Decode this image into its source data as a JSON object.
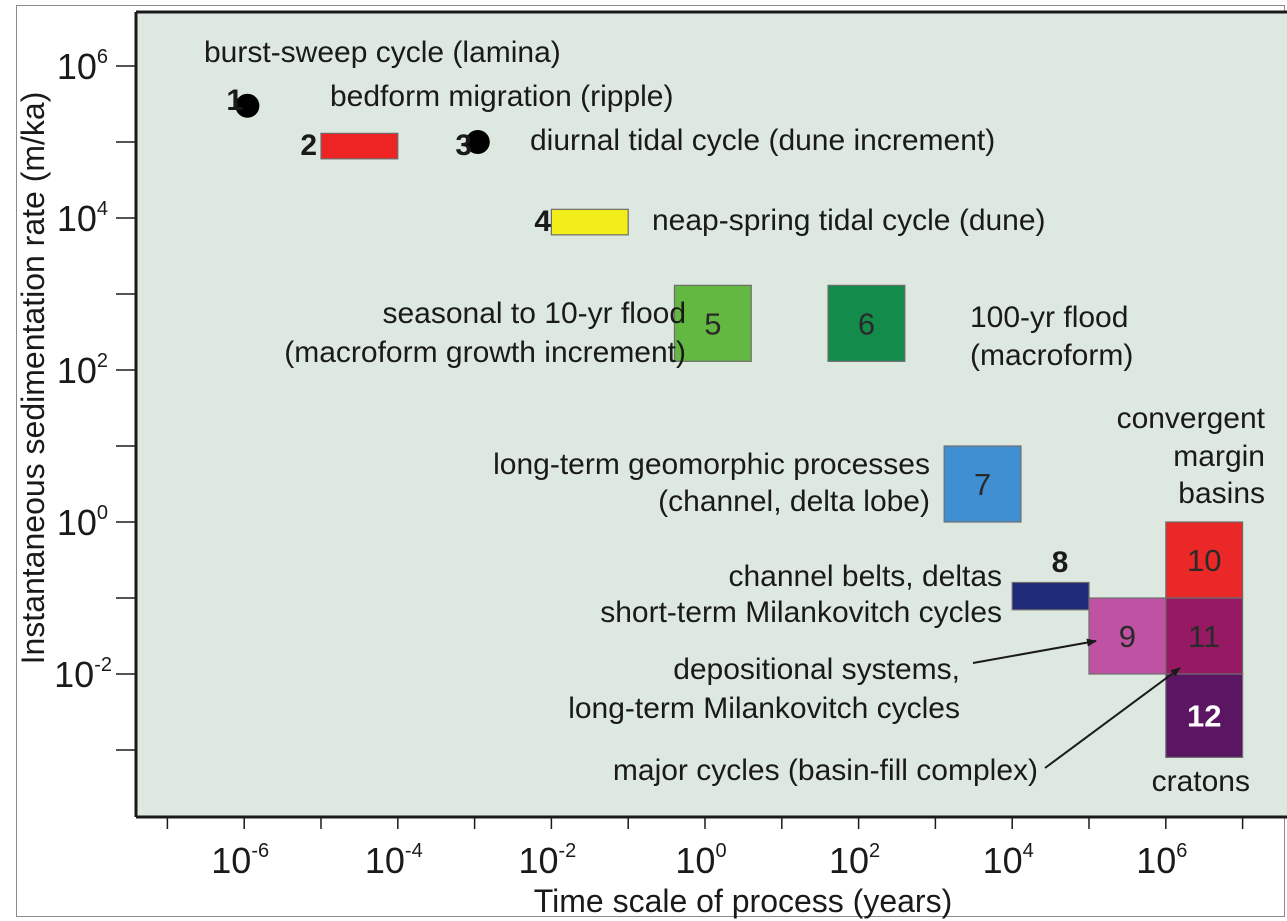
{
  "chart_data": {
    "type": "box-scatter",
    "title": "",
    "xlabel": "Time scale of process (years)",
    "ylabel": "Instantaneous sedimentation rate (m/ka)",
    "x_scale": "log",
    "y_scale": "log",
    "xlim": [
      1e-07,
      10000000.0
    ],
    "ylim": [
      0.0001,
      10000000.0
    ],
    "grid": false,
    "x_ticks": [
      {
        "value": 1e-06,
        "base": "10",
        "exp": "-6"
      },
      {
        "value": 0.0001,
        "base": "10",
        "exp": "-4"
      },
      {
        "value": 0.01,
        "base": "10",
        "exp": "-2"
      },
      {
        "value": 1,
        "base": "10",
        "exp": "0"
      },
      {
        "value": 100.0,
        "base": "10",
        "exp": "2"
      },
      {
        "value": 10000.0,
        "base": "10",
        "exp": "4"
      },
      {
        "value": 1000000.0,
        "base": "10",
        "exp": "6"
      }
    ],
    "y_ticks": [
      {
        "value": 1000000.0,
        "base": "10",
        "exp": "6"
      },
      {
        "value": 10000.0,
        "base": "10",
        "exp": "4"
      },
      {
        "value": 100.0,
        "base": "10",
        "exp": "2"
      },
      {
        "value": 1,
        "base": "10",
        "exp": "0"
      },
      {
        "value": 0.01,
        "base": "10",
        "exp": "-2"
      }
    ],
    "points": [
      {
        "id": "1",
        "x": 1.1e-06,
        "y": 300000.0,
        "color": "#000000"
      },
      {
        "id": "3",
        "x": 0.0011,
        "y": 100000.0,
        "color": "#000000"
      }
    ],
    "boxes": [
      {
        "id": "2",
        "x": [
          1e-05,
          0.0001
        ],
        "y": [
          60000.0,
          130000.0
        ],
        "color": "#ee2424",
        "label_inside": false
      },
      {
        "id": "4",
        "x": [
          0.01,
          0.1
        ],
        "y": [
          6000.0,
          13000.0
        ],
        "color": "#f2ee1a",
        "label_inside": false
      },
      {
        "id": "5",
        "x": [
          0.4,
          4
        ],
        "y": [
          130.0,
          1300.0
        ],
        "color": "#62b840",
        "label_inside": true
      },
      {
        "id": "6",
        "x": [
          40,
          400
        ],
        "y": [
          130.0,
          1300.0
        ],
        "color": "#138b4b",
        "label_inside": true
      },
      {
        "id": "7",
        "x": [
          1300.0,
          13000.0
        ],
        "y": [
          1,
          10
        ],
        "color": "#3f8fd2",
        "label_inside": true
      },
      {
        "id": "8",
        "x": [
          10000.0,
          100000.0
        ],
        "y": [
          0.07,
          0.16
        ],
        "color": "#1f2a78",
        "label_inside": false
      },
      {
        "id": "9",
        "x": [
          100000.0,
          1000000.0
        ],
        "y": [
          0.01,
          0.1
        ],
        "color": "#c052a4",
        "label_inside": true
      },
      {
        "id": "10",
        "x": [
          1000000.0,
          10000000.0
        ],
        "y": [
          0.1,
          1
        ],
        "color": "#ea2828",
        "label_inside": true
      },
      {
        "id": "11",
        "x": [
          1000000.0,
          10000000.0
        ],
        "y": [
          0.01,
          0.1
        ],
        "color": "#951a63",
        "label_inside": true
      },
      {
        "id": "12",
        "x": [
          1000000.0,
          10000000.0
        ],
        "y": [
          0.0008,
          0.01
        ],
        "color": "#5a1563",
        "label_inside": true
      }
    ],
    "annotations": [
      "burst-sweep cycle (lamina)",
      "bedform migration (ripple)",
      "diurnal tidal cycle (dune increment)",
      "neap-spring tidal cycle (dune)",
      "seasonal to 10-yr flood",
      "(macroform growth increment)",
      "100-yr flood",
      "(macroform)",
      "long-term geomorphic processes",
      "(channel, delta lobe)",
      "channel belts, deltas",
      "short-term Milankovitch cycles",
      "depositional systems,",
      "long-term Milankovitch cycles",
      "major cycles (basin-fill complex)",
      "convergent",
      "margin",
      "basins",
      "cratons"
    ],
    "plot_background": "#dde8e0"
  }
}
